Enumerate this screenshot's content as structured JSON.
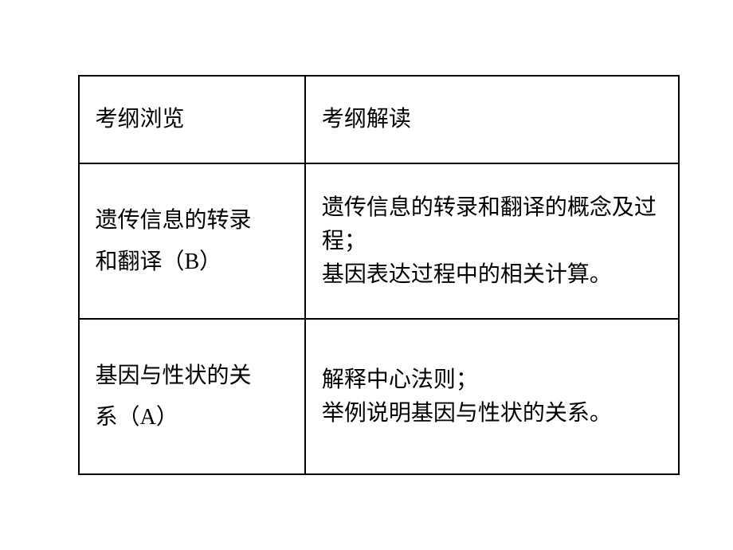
{
  "table": {
    "border_color": "#000000",
    "background_color": "#ffffff",
    "text_color": "#000000",
    "font_size": 28,
    "header": {
      "left": "考纲浏览",
      "right": "考纲解读"
    },
    "rows": [
      {
        "left_line1": "遗传信息的转录",
        "left_line2": "和翻译（B）",
        "right_line1": "遗传信息的转录和翻译的概念及过程；",
        "right_line2": "基因表达过程中的相关计算。"
      },
      {
        "left_line1": "基因与性状的关",
        "left_line2": "系（A）",
        "right_line1": "解释中心法则；",
        "right_line2": "举例说明基因与性状的关系。"
      }
    ]
  }
}
